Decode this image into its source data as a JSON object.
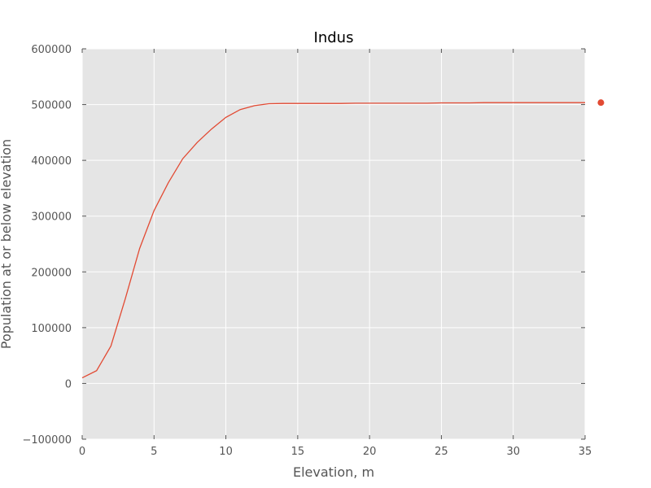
{
  "chart_data": {
    "type": "line",
    "title": "Indus",
    "xlabel": "Elevation, m",
    "ylabel": "Population at or below elevation",
    "xlim": [
      0,
      35
    ],
    "ylim": [
      -100000,
      600000
    ],
    "xticks": [
      0,
      5,
      10,
      15,
      20,
      25,
      30,
      35
    ],
    "xtick_labels": [
      "0",
      "5",
      "10",
      "15",
      "20",
      "25",
      "30",
      "35"
    ],
    "yticks": [
      -100000,
      0,
      100000,
      200000,
      300000,
      400000,
      500000,
      600000
    ],
    "ytick_labels": [
      "−100000",
      "0",
      "100000",
      "200000",
      "300000",
      "400000",
      "500000",
      "600000"
    ],
    "grid": true,
    "background": "#e5e5e5",
    "series": [
      {
        "color": "#e24a33",
        "x": [
          0,
          1,
          2,
          3,
          4,
          5,
          6,
          7,
          8,
          9,
          10,
          11,
          12,
          13,
          14,
          15,
          16,
          17,
          18,
          19,
          20,
          21,
          22,
          23,
          24,
          25,
          26,
          27,
          28,
          29,
          30,
          31,
          32,
          33,
          34,
          35
        ],
        "y": [
          10000,
          23000,
          67000,
          152000,
          242000,
          310000,
          360000,
          403000,
          432000,
          456000,
          477000,
          491000,
          498000,
          501500,
          502000,
          502000,
          502000,
          502000,
          502000,
          502500,
          502500,
          502500,
          502500,
          502500,
          502500,
          503000,
          503000,
          503000,
          503500,
          503500,
          503500,
          503500,
          503500,
          503500,
          503500,
          503500
        ]
      }
    ],
    "markers": [
      {
        "x": 36.1,
        "y": 503500,
        "color": "#e24a33"
      }
    ]
  }
}
